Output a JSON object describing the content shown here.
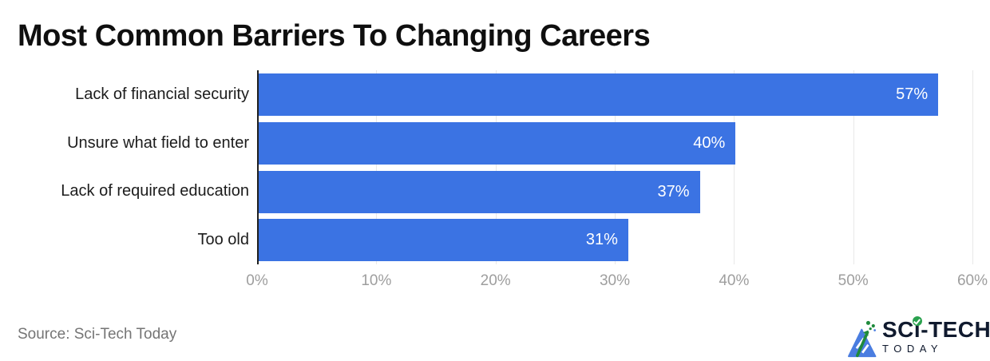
{
  "header": {
    "title": "Most Common Barriers To Changing Careers"
  },
  "chart_data": {
    "type": "bar",
    "orientation": "horizontal",
    "title": "Most Common Barriers To Changing Careers",
    "categories": [
      "Lack of financial security",
      "Unsure what field to enter",
      "Lack of required education",
      "Too old"
    ],
    "values": [
      57,
      40,
      37,
      31
    ],
    "value_labels": [
      "57%",
      "40%",
      "37%",
      "31%"
    ],
    "xlabel": "",
    "ylabel": "",
    "xlim": [
      0,
      60
    ],
    "x_ticks": [
      0,
      10,
      20,
      30,
      40,
      50,
      60
    ],
    "x_tick_labels": [
      "0%",
      "10%",
      "20%",
      "30%",
      "40%",
      "50%",
      "60%"
    ],
    "grid": "vertical-gridlines",
    "legend": "none",
    "value_labels_position": "inside-end"
  },
  "colors": {
    "bar": "#3b73e3",
    "value": "#ffffff",
    "axis": "#1f1f1f",
    "grid": "#e8e8e8",
    "tick": "#9e9e9e",
    "category": "#1c1c1c",
    "title": "#0f0f0f",
    "source": "#757575",
    "logo_navy": "#101a2e",
    "logo_blue": "#4a7de0",
    "logo_green": "#1f8a3c",
    "logo_check_green": "#2aa14e"
  },
  "footer": {
    "source": "Source: Sci-Tech Today",
    "logo": {
      "brand_left": "SC",
      "brand_i": "i",
      "brand_right": "-TECH",
      "sub": "TODAY",
      "icons": [
        "logo-mark-icon",
        "check-icon"
      ]
    }
  }
}
